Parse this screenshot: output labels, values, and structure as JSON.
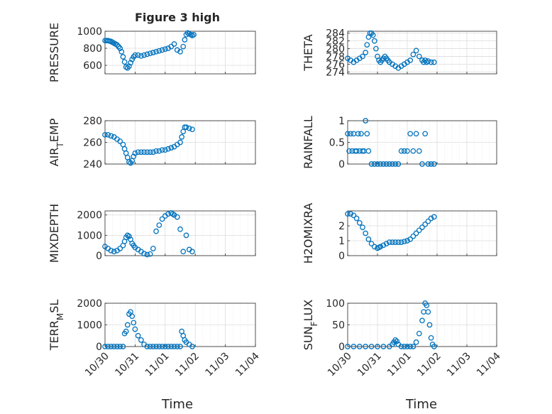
{
  "figure": {
    "title": "Figure 3 high"
  },
  "colors": {
    "marker": "#0072BD",
    "grid": "#dcdcdc",
    "axis": "#262626"
  },
  "chart_data": [
    {
      "type": "scatter",
      "title": "Figure 3 high",
      "ylabel": "PRESSURE",
      "xlim": [
        "10/30",
        "11/04"
      ],
      "ylim": [
        500,
        1000
      ],
      "yticks": [
        "600",
        "800",
        "1000"
      ],
      "ytick_values": [
        600,
        800,
        1000
      ],
      "xticks": [
        "10/30",
        "10/31",
        "11/01",
        "11/02",
        "11/03",
        "11/04"
      ],
      "grid": true,
      "x_days": [
        0.0,
        0.05,
        0.1,
        0.15,
        0.2,
        0.25,
        0.3,
        0.35,
        0.4,
        0.45,
        0.5,
        0.55,
        0.6,
        0.65,
        0.7,
        0.75,
        0.8,
        0.85,
        0.9,
        0.95,
        1.0,
        1.1,
        1.2,
        1.3,
        1.4,
        1.5,
        1.6,
        1.7,
        1.8,
        1.9,
        2.0,
        2.1,
        2.2,
        2.3,
        2.4,
        2.5,
        2.6,
        2.65,
        2.7,
        2.75,
        2.8,
        2.85,
        2.9,
        2.95
      ],
      "y": [
        890,
        890,
        890,
        885,
        880,
        870,
        860,
        850,
        840,
        820,
        800,
        760,
        700,
        640,
        580,
        570,
        590,
        630,
        670,
        700,
        720,
        720,
        710,
        720,
        730,
        740,
        750,
        760,
        770,
        780,
        790,
        800,
        820,
        850,
        780,
        760,
        820,
        900,
        960,
        980,
        970,
        960,
        950,
        960
      ]
    },
    {
      "type": "scatter",
      "ylabel": "THETA",
      "xlim": [
        "10/30",
        "11/04"
      ],
      "ylim": [
        273.5,
        284.5
      ],
      "yticks": [
        "274",
        "276",
        "278",
        "280",
        "282",
        "284"
      ],
      "ytick_values": [
        274,
        276,
        278,
        280,
        282,
        284
      ],
      "xticks": [
        "10/30",
        "10/31",
        "11/01",
        "11/02",
        "11/03",
        "11/04"
      ],
      "grid": true,
      "x_days": [
        0.0,
        0.1,
        0.2,
        0.3,
        0.4,
        0.5,
        0.6,
        0.65,
        0.7,
        0.75,
        0.8,
        0.85,
        0.9,
        0.95,
        1.0,
        1.05,
        1.1,
        1.15,
        1.2,
        1.25,
        1.3,
        1.35,
        1.4,
        1.5,
        1.6,
        1.7,
        1.8,
        1.9,
        2.0,
        2.1,
        2.2,
        2.3,
        2.4,
        2.5,
        2.55,
        2.6,
        2.65,
        2.7,
        2.8,
        2.9
      ],
      "y": [
        277.5,
        277,
        276.5,
        277,
        277.5,
        278,
        279,
        281,
        283,
        284,
        284,
        283.5,
        282,
        280,
        278,
        277,
        276.5,
        277,
        277.5,
        278,
        277.5,
        277,
        276.5,
        276,
        275.5,
        275,
        275.5,
        276,
        276.5,
        277,
        278.5,
        279.5,
        278,
        277,
        276.5,
        277,
        276.5,
        276.8,
        276.5,
        276.5
      ]
    },
    {
      "type": "scatter",
      "ylabel": "AIR_TEMP",
      "ylabel_main": "AIR",
      "ylabel_sub": "T",
      "ylabel_rest": "EMP",
      "xlim": [
        "10/30",
        "11/04"
      ],
      "ylim": [
        240,
        280
      ],
      "yticks": [
        "240",
        "260",
        "280"
      ],
      "ytick_values": [
        240,
        260,
        280
      ],
      "xticks": [
        "10/30",
        "10/31",
        "11/01",
        "11/02",
        "11/03",
        "11/04"
      ],
      "grid": true,
      "x_days": [
        0.0,
        0.1,
        0.2,
        0.3,
        0.4,
        0.5,
        0.6,
        0.65,
        0.7,
        0.75,
        0.8,
        0.85,
        0.9,
        0.95,
        1.0,
        1.1,
        1.2,
        1.3,
        1.4,
        1.5,
        1.6,
        1.7,
        1.8,
        1.9,
        2.0,
        2.1,
        2.2,
        2.3,
        2.4,
        2.5,
        2.55,
        2.6,
        2.65,
        2.7,
        2.8,
        2.9
      ],
      "y": [
        267,
        267,
        266,
        265,
        263,
        261,
        258,
        254,
        250,
        246,
        242,
        241,
        243,
        247,
        250,
        251,
        251,
        251,
        251,
        251,
        251,
        252,
        252,
        253,
        253,
        254,
        255,
        256,
        258,
        260,
        265,
        270,
        274,
        274,
        273,
        272
      ]
    },
    {
      "type": "scatter",
      "ylabel": "RAINFALL",
      "xlim": [
        "10/30",
        "11/04"
      ],
      "ylim": [
        0,
        1
      ],
      "yticks": [
        "0",
        "0.5",
        "1"
      ],
      "ytick_values": [
        0,
        0.5,
        1
      ],
      "xticks": [
        "10/30",
        "10/31",
        "11/01",
        "11/02",
        "11/03",
        "11/04"
      ],
      "grid": true,
      "x_days": [
        0.0,
        0.05,
        0.1,
        0.15,
        0.2,
        0.25,
        0.3,
        0.35,
        0.4,
        0.45,
        0.5,
        0.55,
        0.6,
        0.65,
        0.7,
        0.8,
        0.9,
        1.0,
        1.1,
        1.2,
        1.3,
        1.4,
        1.5,
        1.6,
        1.7,
        1.8,
        1.9,
        2.0,
        2.1,
        2.2,
        2.3,
        2.4,
        2.5,
        2.6,
        2.7,
        2.8,
        2.9
      ],
      "y": [
        0.7,
        0.3,
        0.7,
        0.3,
        0.7,
        0.3,
        0.3,
        0.7,
        0.3,
        0.7,
        0.3,
        0.3,
        1.0,
        0.7,
        0.3,
        0,
        0,
        0,
        0,
        0,
        0,
        0,
        0,
        0,
        0,
        0.3,
        0.3,
        0.3,
        0.7,
        0.3,
        0.7,
        0.3,
        0,
        0.7,
        0,
        0,
        0
      ]
    },
    {
      "type": "scatter",
      "ylabel": "MIXDEPTH",
      "xlim": [
        "10/30",
        "11/04"
      ],
      "ylim": [
        0,
        2200
      ],
      "yticks": [
        "0",
        "1000",
        "2000"
      ],
      "ytick_values": [
        0,
        1000,
        2000
      ],
      "xticks": [
        "10/30",
        "10/31",
        "11/01",
        "11/02",
        "11/03",
        "11/04"
      ],
      "grid": true,
      "x_days": [
        0.0,
        0.1,
        0.2,
        0.3,
        0.4,
        0.5,
        0.6,
        0.65,
        0.7,
        0.75,
        0.8,
        0.85,
        0.9,
        0.95,
        1.0,
        1.1,
        1.2,
        1.3,
        1.4,
        1.5,
        1.6,
        1.7,
        1.8,
        1.9,
        2.0,
        2.1,
        2.2,
        2.25,
        2.3,
        2.4,
        2.5,
        2.6,
        2.7,
        2.8,
        2.9
      ],
      "y": [
        450,
        350,
        250,
        200,
        250,
        350,
        500,
        700,
        900,
        1000,
        950,
        800,
        600,
        500,
        400,
        300,
        200,
        100,
        50,
        80,
        350,
        1200,
        1500,
        1800,
        1950,
        2050,
        2100,
        2050,
        2000,
        1900,
        1300,
        200,
        1000,
        300,
        200
      ]
    },
    {
      "type": "scatter",
      "ylabel": "H2OMIXRA",
      "xlim": [
        "10/30",
        "11/04"
      ],
      "ylim": [
        0,
        3
      ],
      "yticks": [
        "0",
        "1",
        "2"
      ],
      "ytick_values": [
        0,
        1,
        2
      ],
      "xticks": [
        "10/30",
        "10/31",
        "11/01",
        "11/02",
        "11/03",
        "11/04"
      ],
      "grid": true,
      "x_days": [
        0.0,
        0.1,
        0.2,
        0.3,
        0.4,
        0.5,
        0.6,
        0.7,
        0.8,
        0.9,
        1.0,
        1.05,
        1.1,
        1.2,
        1.3,
        1.4,
        1.5,
        1.6,
        1.7,
        1.8,
        1.9,
        2.0,
        2.1,
        2.2,
        2.3,
        2.4,
        2.5,
        2.6,
        2.7,
        2.8,
        2.9
      ],
      "y": [
        2.8,
        2.8,
        2.7,
        2.5,
        2.2,
        1.9,
        1.5,
        1.1,
        0.8,
        0.6,
        0.5,
        0.55,
        0.6,
        0.7,
        0.8,
        0.9,
        0.9,
        0.9,
        0.9,
        0.9,
        0.95,
        1.0,
        1.1,
        1.3,
        1.5,
        1.7,
        1.9,
        2.1,
        2.3,
        2.5,
        2.6
      ]
    },
    {
      "type": "scatter",
      "ylabel": "TERR_MSL",
      "ylabel_main": "TERR",
      "ylabel_sub": "M",
      "ylabel_rest": "SL",
      "xlim": [
        "10/30",
        "11/04"
      ],
      "ylim": [
        0,
        2000
      ],
      "yticks": [
        "0",
        "1000",
        "2000"
      ],
      "ytick_values": [
        0,
        1000,
        2000
      ],
      "xticks": [
        "10/30",
        "10/31",
        "11/01",
        "11/02",
        "11/03",
        "11/04"
      ],
      "grid": true,
      "x_days": [
        0.0,
        0.1,
        0.2,
        0.3,
        0.4,
        0.5,
        0.6,
        0.65,
        0.7,
        0.75,
        0.8,
        0.85,
        0.9,
        0.95,
        1.0,
        1.1,
        1.2,
        1.3,
        1.4,
        1.5,
        1.6,
        1.7,
        1.8,
        1.9,
        2.0,
        2.1,
        2.2,
        2.3,
        2.4,
        2.5,
        2.55,
        2.6,
        2.65,
        2.7,
        2.8,
        2.9
      ],
      "y": [
        0,
        0,
        0,
        0,
        0,
        0,
        0,
        600,
        700,
        1000,
        1500,
        1600,
        1400,
        1100,
        800,
        500,
        300,
        100,
        0,
        0,
        0,
        0,
        0,
        0,
        0,
        0,
        0,
        0,
        0,
        0,
        700,
        500,
        300,
        200,
        100,
        0
      ]
    },
    {
      "type": "scatter",
      "ylabel": "SUN_FLUX",
      "ylabel_main": "SUN",
      "ylabel_sub": "F",
      "ylabel_rest": "LUX",
      "xlim": [
        "10/30",
        "11/04"
      ],
      "ylim": [
        0,
        100
      ],
      "yticks": [
        "0",
        "50",
        "100"
      ],
      "ytick_values": [
        0,
        50,
        100
      ],
      "xticks": [
        "10/30",
        "10/31",
        "11/01",
        "11/02",
        "11/03",
        "11/04"
      ],
      "grid": true,
      "x_days": [
        0.0,
        0.2,
        0.4,
        0.6,
        0.8,
        1.0,
        1.2,
        1.4,
        1.5,
        1.55,
        1.6,
        1.65,
        1.7,
        1.8,
        1.9,
        2.0,
        2.1,
        2.2,
        2.3,
        2.4,
        2.5,
        2.55,
        2.6,
        2.65,
        2.7,
        2.75,
        2.8,
        2.85,
        2.9
      ],
      "y": [
        0,
        0,
        0,
        0,
        0,
        0,
        0,
        0,
        5,
        10,
        15,
        12,
        5,
        0,
        0,
        0,
        0,
        0,
        10,
        30,
        60,
        80,
        100,
        95,
        80,
        50,
        20,
        5,
        0
      ]
    }
  ],
  "xlabel_left": "Time",
  "xlabel_right": "Time"
}
